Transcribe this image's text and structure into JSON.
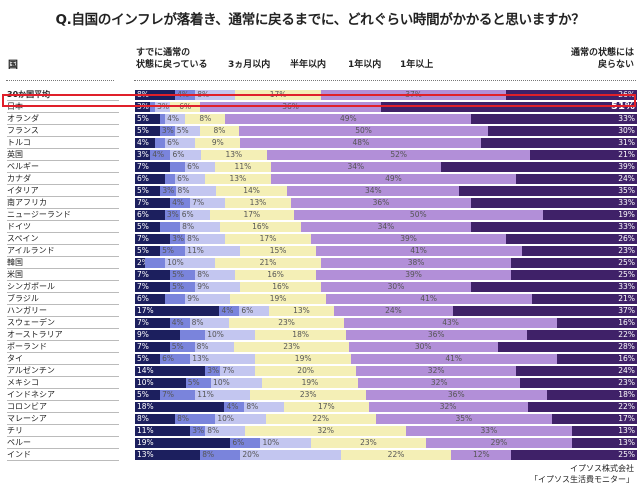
{
  "title": "Q.自国のインフレが落着き、通常に戻るまでに、どれぐらい時間がかかると思いますか？",
  "footer": {
    "line1": "イプソス株式会社",
    "line2": "「イプソス生活費モニター」"
  },
  "chart_data": {
    "type": "bar",
    "orientation": "horizontal",
    "stacked": true,
    "unit": "%",
    "category_header": "国",
    "series_names": [
      "すでに通常の状態に戻っている",
      "3ヵ月以内",
      "半年以内",
      "1年以内",
      "1年以上",
      "通常の状態には戻らない"
    ],
    "series_header_lines": [
      [
        "すでに通常の",
        "状態に戻っている"
      ],
      [
        "3ヵ月以内"
      ],
      [
        "半年以内"
      ],
      [
        "1年以内"
      ],
      [
        "1年以上"
      ],
      [
        "通常の状態には",
        "戻らない"
      ]
    ],
    "colors": [
      "#1c1f5e",
      "#7a84dc",
      "#c3c6f0",
      "#f4efb6",
      "#b28fd8",
      "#3f2168"
    ],
    "highlight": "日本",
    "highlight_color": "#e0202a",
    "rows": [
      {
        "country": "30か国平均",
        "values": [
          8,
          4,
          8,
          17,
          37,
          26
        ]
      },
      {
        "country": "日本",
        "values": [
          3,
          null,
          3,
          6,
          36,
          51
        ]
      },
      {
        "country": "オランダ",
        "values": [
          5,
          null,
          4,
          8,
          49,
          33
        ]
      },
      {
        "country": "フランス",
        "values": [
          5,
          3,
          5,
          8,
          50,
          30
        ]
      },
      {
        "country": "トルコ",
        "values": [
          4,
          null,
          6,
          9,
          48,
          31
        ]
      },
      {
        "country": "英国",
        "values": [
          3,
          4,
          6,
          13,
          52,
          21
        ]
      },
      {
        "country": "ベルギー",
        "values": [
          7,
          null,
          6,
          11,
          34,
          39
        ]
      },
      {
        "country": "カナダ",
        "values": [
          6,
          null,
          6,
          13,
          49,
          24
        ]
      },
      {
        "country": "イタリア",
        "values": [
          5,
          3,
          8,
          14,
          34,
          35
        ]
      },
      {
        "country": "南アフリカ",
        "values": [
          7,
          4,
          7,
          13,
          36,
          33
        ]
      },
      {
        "country": "ニュージーランド",
        "values": [
          6,
          3,
          6,
          17,
          50,
          19
        ]
      },
      {
        "country": "ドイツ",
        "values": [
          5,
          null,
          8,
          16,
          34,
          33
        ]
      },
      {
        "country": "スペイン",
        "values": [
          7,
          3,
          8,
          17,
          39,
          26
        ]
      },
      {
        "country": "アイルランド",
        "values": [
          5,
          5,
          11,
          15,
          41,
          23
        ]
      },
      {
        "country": "韓国",
        "values": [
          2,
          null,
          10,
          21,
          38,
          25
        ]
      },
      {
        "country": "米国",
        "values": [
          7,
          5,
          8,
          16,
          39,
          25
        ]
      },
      {
        "country": "シンガポール",
        "values": [
          7,
          5,
          9,
          16,
          30,
          33
        ]
      },
      {
        "country": "ブラジル",
        "values": [
          6,
          null,
          9,
          19,
          41,
          21
        ]
      },
      {
        "country": "ハンガリー",
        "values": [
          17,
          4,
          6,
          13,
          24,
          37
        ]
      },
      {
        "country": "スウェーデン",
        "values": [
          7,
          4,
          8,
          23,
          43,
          16
        ]
      },
      {
        "country": "オーストラリア",
        "values": [
          9,
          null,
          10,
          18,
          36,
          22
        ]
      },
      {
        "country": "ポーランド",
        "values": [
          7,
          5,
          8,
          23,
          30,
          28
        ]
      },
      {
        "country": "タイ",
        "values": [
          5,
          6,
          13,
          19,
          41,
          16
        ]
      },
      {
        "country": "アルゼンチン",
        "values": [
          14,
          3,
          7,
          20,
          32,
          24
        ]
      },
      {
        "country": "メキシコ",
        "values": [
          10,
          5,
          10,
          19,
          32,
          23
        ]
      },
      {
        "country": "インドネシア",
        "values": [
          5,
          7,
          11,
          23,
          36,
          18
        ]
      },
      {
        "country": "コロンビア",
        "values": [
          18,
          4,
          8,
          17,
          32,
          22
        ]
      },
      {
        "country": "マレーシア",
        "values": [
          8,
          8,
          10,
          22,
          35,
          17
        ]
      },
      {
        "country": "チリ",
        "values": [
          11,
          3,
          8,
          32,
          33,
          13
        ]
      },
      {
        "country": "ペルー",
        "values": [
          19,
          6,
          10,
          23,
          29,
          13
        ]
      },
      {
        "country": "インド",
        "values": [
          13,
          8,
          20,
          22,
          12,
          25
        ]
      }
    ]
  }
}
